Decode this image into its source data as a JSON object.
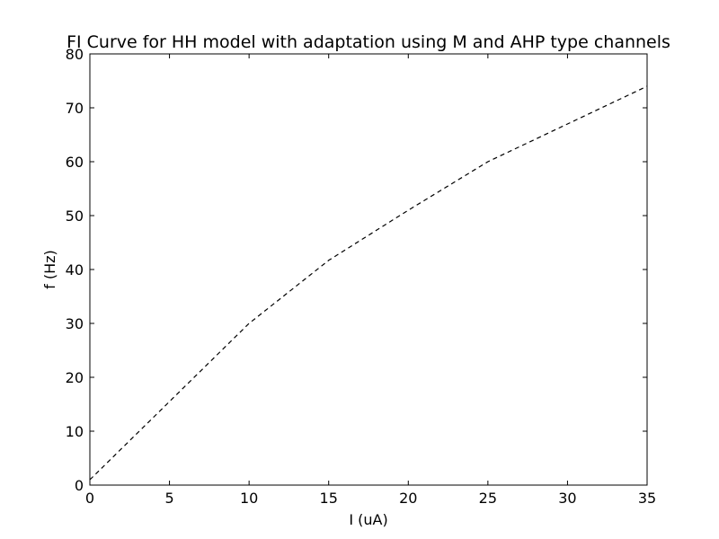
{
  "chart_data": {
    "type": "line",
    "title": "FI Curve for HH model with adaptation using M and AHP type channels",
    "xlabel": "I (uA)",
    "ylabel": "f (Hz)",
    "xlim": [
      0,
      35
    ],
    "ylim": [
      0,
      80
    ],
    "xticks": [
      0,
      5,
      10,
      15,
      20,
      25,
      30,
      35
    ],
    "yticks": [
      0,
      10,
      20,
      30,
      40,
      50,
      60,
      70,
      80
    ],
    "grid": false,
    "legend": "none",
    "series": [
      {
        "line_style": "dashed",
        "color": "#000000",
        "x": [
          0,
          5,
          10,
          15,
          20,
          25,
          30,
          35
        ],
        "y": [
          1,
          15.5,
          30,
          41.7,
          51,
          60,
          67,
          74
        ]
      }
    ]
  }
}
